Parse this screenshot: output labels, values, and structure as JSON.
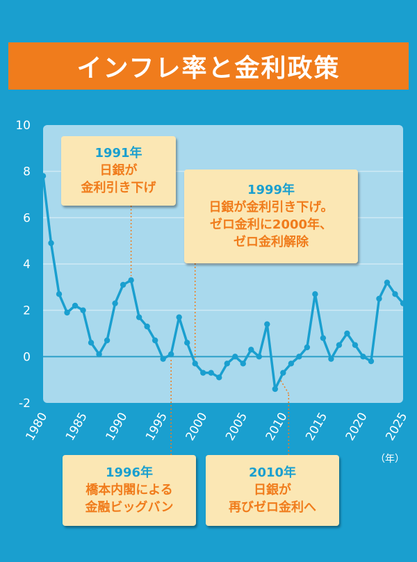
{
  "title": "インフレ率と金利政策",
  "x_unit": "（年）",
  "callouts": [
    {
      "year": "1991年",
      "lines": [
        "日銀が",
        "金利引き下げ"
      ]
    },
    {
      "year": "1999年",
      "lines": [
        "日銀が金利引き下げ。",
        "ゼロ金利に2000年、",
        "ゼロ金利解除"
      ]
    },
    {
      "year": "1996年",
      "lines": [
        "橋本内閣による",
        "金融ビッグバン"
      ]
    },
    {
      "year": "2010年",
      "lines": [
        "日銀が",
        "再びゼロ金利へ"
      ]
    }
  ],
  "colors": {
    "background": "#1a9fcf",
    "plot_area": "#a9d9ed",
    "line": "#1a9fcf",
    "accent": "#f07c1c",
    "callout": "#fbe7b4"
  },
  "chart_data": {
    "type": "line",
    "title": "インフレ率と金利政策",
    "xlabel": "（年）",
    "ylabel": "",
    "xlim": [
      1980,
      2025
    ],
    "ylim": [
      -2,
      10
    ],
    "x_ticks": [
      1980,
      1985,
      1990,
      1995,
      2000,
      2005,
      2010,
      2015,
      2020,
      2025
    ],
    "y_ticks": [
      -2,
      0,
      2,
      4,
      6,
      8,
      10
    ],
    "grid": true,
    "legend": "none",
    "x": [
      1980,
      1981,
      1982,
      1983,
      1984,
      1985,
      1986,
      1987,
      1988,
      1989,
      1990,
      1991,
      1992,
      1993,
      1994,
      1995,
      1996,
      1997,
      1998,
      1999,
      2000,
      2001,
      2002,
      2003,
      2004,
      2005,
      2006,
      2007,
      2008,
      2009,
      2010,
      2011,
      2012,
      2013,
      2014,
      2015,
      2016,
      2017,
      2018,
      2019,
      2020,
      2021,
      2022,
      2023,
      2024,
      2025
    ],
    "values": [
      7.8,
      4.9,
      2.7,
      1.9,
      2.2,
      2.0,
      0.6,
      0.1,
      0.7,
      2.3,
      3.1,
      3.3,
      1.7,
      1.3,
      0.7,
      -0.1,
      0.1,
      1.7,
      0.6,
      -0.3,
      -0.7,
      -0.7,
      -0.9,
      -0.3,
      0.0,
      -0.3,
      0.3,
      0.0,
      1.4,
      -1.4,
      -0.7,
      -0.3,
      0.0,
      0.4,
      2.7,
      0.8,
      -0.1,
      0.5,
      1.0,
      0.5,
      0.0,
      -0.2,
      2.5,
      3.2,
      2.7,
      2.3
    ]
  }
}
